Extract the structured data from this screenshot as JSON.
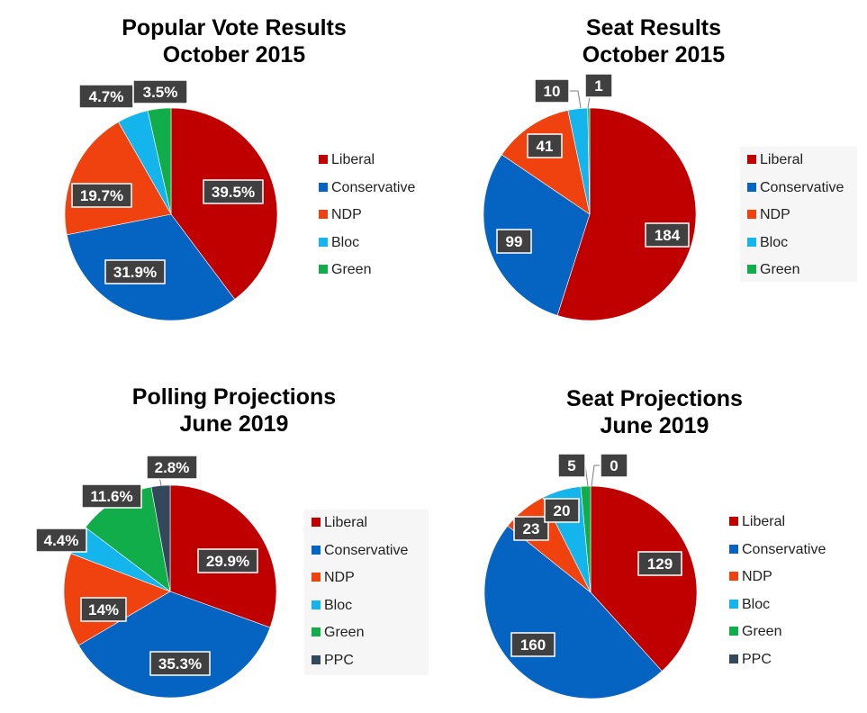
{
  "colors": {
    "Liberal": "#c00000",
    "Conservative": "#0563c1",
    "NDP": "#f0420f",
    "Bloc": "#14b4ec",
    "Green": "#12ad4b",
    "PPC": "#34485c",
    "label_bg": "#404040"
  },
  "chart_data": [
    {
      "type": "pie",
      "title": [
        "Popular Vote Results",
        "October 2015"
      ],
      "categories": [
        "Liberal",
        "Conservative",
        "NDP",
        "Bloc",
        "Green"
      ],
      "values": [
        39.5,
        31.9,
        19.7,
        4.7,
        3.5
      ],
      "labels": [
        "39.5%",
        "31.9%",
        "19.7%",
        "4.7%",
        "3.5%"
      ],
      "legend": [
        "Liberal",
        "Conservative",
        "NDP",
        "Bloc",
        "Green"
      ],
      "legend_position": "right"
    },
    {
      "type": "pie",
      "title": [
        "Seat Results",
        "October 2015"
      ],
      "categories": [
        "Liberal",
        "Conservative",
        "NDP",
        "Bloc",
        "Green"
      ],
      "values": [
        184,
        99,
        41,
        10,
        1
      ],
      "labels": [
        "184",
        "99",
        "41",
        "10",
        "1"
      ],
      "legend": [
        "Liberal",
        "Conservative",
        "NDP",
        "Bloc",
        "Green"
      ],
      "legend_position": "right"
    },
    {
      "type": "pie",
      "title": [
        "Polling Projections",
        "June 2019"
      ],
      "categories": [
        "Liberal",
        "Conservative",
        "NDP",
        "Bloc",
        "Green",
        "PPC"
      ],
      "values": [
        29.9,
        35.3,
        14,
        4.4,
        11.6,
        2.8
      ],
      "labels": [
        "29.9%",
        "35.3%",
        "14%",
        "4.4%",
        "11.6%",
        "2.8%"
      ],
      "legend": [
        "Liberal",
        "Conservative",
        "NDP",
        "Bloc",
        "Green",
        "PPC"
      ],
      "legend_position": "right"
    },
    {
      "type": "pie",
      "title": [
        "Seat Projections",
        "June 2019"
      ],
      "categories": [
        "Liberal",
        "Conservative",
        "NDP",
        "Bloc",
        "Green",
        "PPC"
      ],
      "values": [
        129,
        160,
        23,
        20,
        5,
        0
      ],
      "labels": [
        "129",
        "160",
        "23",
        "20",
        "5",
        "0"
      ],
      "legend": [
        "Liberal",
        "Conservative",
        "NDP",
        "Bloc",
        "Green",
        "PPC"
      ],
      "legend_position": "right"
    }
  ]
}
